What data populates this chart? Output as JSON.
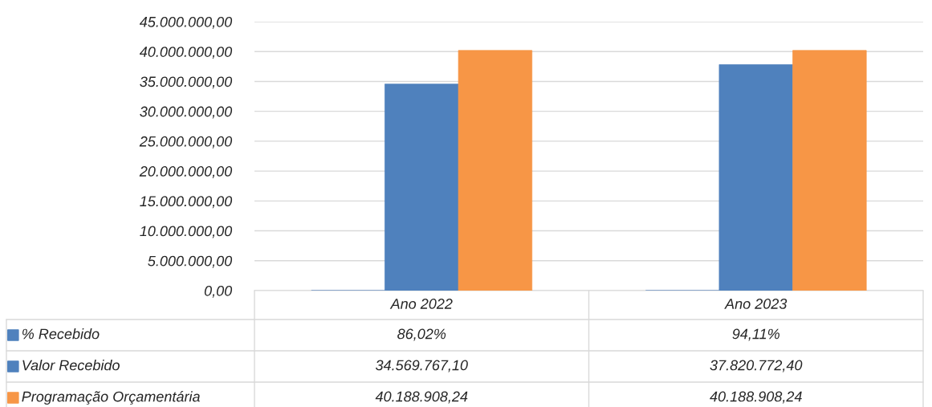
{
  "chart_data": {
    "type": "bar",
    "categories": [
      "Ano 2022",
      "Ano 2023"
    ],
    "series": [
      {
        "name": "% Recebido",
        "color": "#4f81bd",
        "values": [
          0.8602,
          0.9411
        ],
        "value_labels": [
          "86,02%",
          "94,11%"
        ]
      },
      {
        "name": "Valor Recebido",
        "color": "#4f81bd",
        "values": [
          34569767.1,
          37820772.4
        ],
        "value_labels": [
          "34.569.767,10",
          "37.820.772,40"
        ]
      },
      {
        "name": "Programação Orçamentária",
        "color": "#f79646",
        "values": [
          40188908.24,
          40188908.24
        ],
        "value_labels": [
          "40.188.908,24",
          "40.188.908,24"
        ]
      }
    ],
    "ylim": [
      0,
      45000000
    ],
    "yticks": [
      {
        "value": 0,
        "label": "0,00"
      },
      {
        "value": 5000000,
        "label": "5.000.000,00"
      },
      {
        "value": 10000000,
        "label": "10.000.000,00"
      },
      {
        "value": 15000000,
        "label": "15.000.000,00"
      },
      {
        "value": 20000000,
        "label": "20.000.000,00"
      },
      {
        "value": 25000000,
        "label": "25.000.000,00"
      },
      {
        "value": 30000000,
        "label": "30.000.000,00"
      },
      {
        "value": 35000000,
        "label": "35.000.000,00"
      },
      {
        "value": 40000000,
        "label": "40.000.000,00"
      },
      {
        "value": 45000000,
        "label": "45.000.000,00"
      }
    ],
    "grid": "y",
    "legend": "bottom"
  }
}
